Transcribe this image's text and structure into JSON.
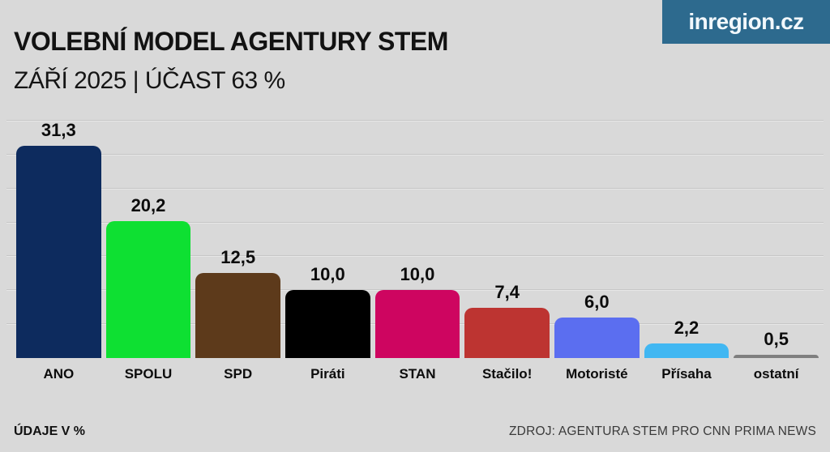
{
  "header": {
    "title": "VOLEBNÍ MODEL AGENTURY STEM",
    "subtitle": "ZÁŘÍ 2025 | ÚČAST 63 %"
  },
  "logo": {
    "text": "inregion.cz",
    "bg_color": "#2d6a8e",
    "text_color": "#f2f8fc"
  },
  "footer": {
    "left": "ÚDAJE V %",
    "right": "ZDROJ: AGENTURA STEM PRO CNN PRIMA NEWS"
  },
  "chart_data": {
    "type": "bar",
    "title": "VOLEBNÍ MODEL AGENTURY STEM",
    "subtitle": "ZÁŘÍ 2025 | ÚČAST 63 %",
    "categories": [
      "ANO",
      "SPOLU",
      "SPD",
      "Piráti",
      "STAN",
      "Stačilo!",
      "Motoristé",
      "Přísaha",
      "ostatní"
    ],
    "values": [
      31.3,
      20.2,
      12.5,
      10.0,
      10.0,
      7.4,
      6.0,
      2.2,
      0.5
    ],
    "value_labels": [
      "31,3",
      "20,2",
      "12,5",
      "10,0",
      "10,0",
      "7,4",
      "6,0",
      "2,2",
      "0,5"
    ],
    "bar_colors": [
      "#0d2b5e",
      "#0ee032",
      "#5d3a1b",
      "#000000",
      "#ce0560",
      "#bd3431",
      "#5b6ef0",
      "#41b7f2",
      "#7f7f7f"
    ],
    "units": "%",
    "ylim": [
      0,
      35
    ],
    "gridline_step": 5,
    "grid": true,
    "legend": false,
    "background": "#d9d9d9"
  }
}
